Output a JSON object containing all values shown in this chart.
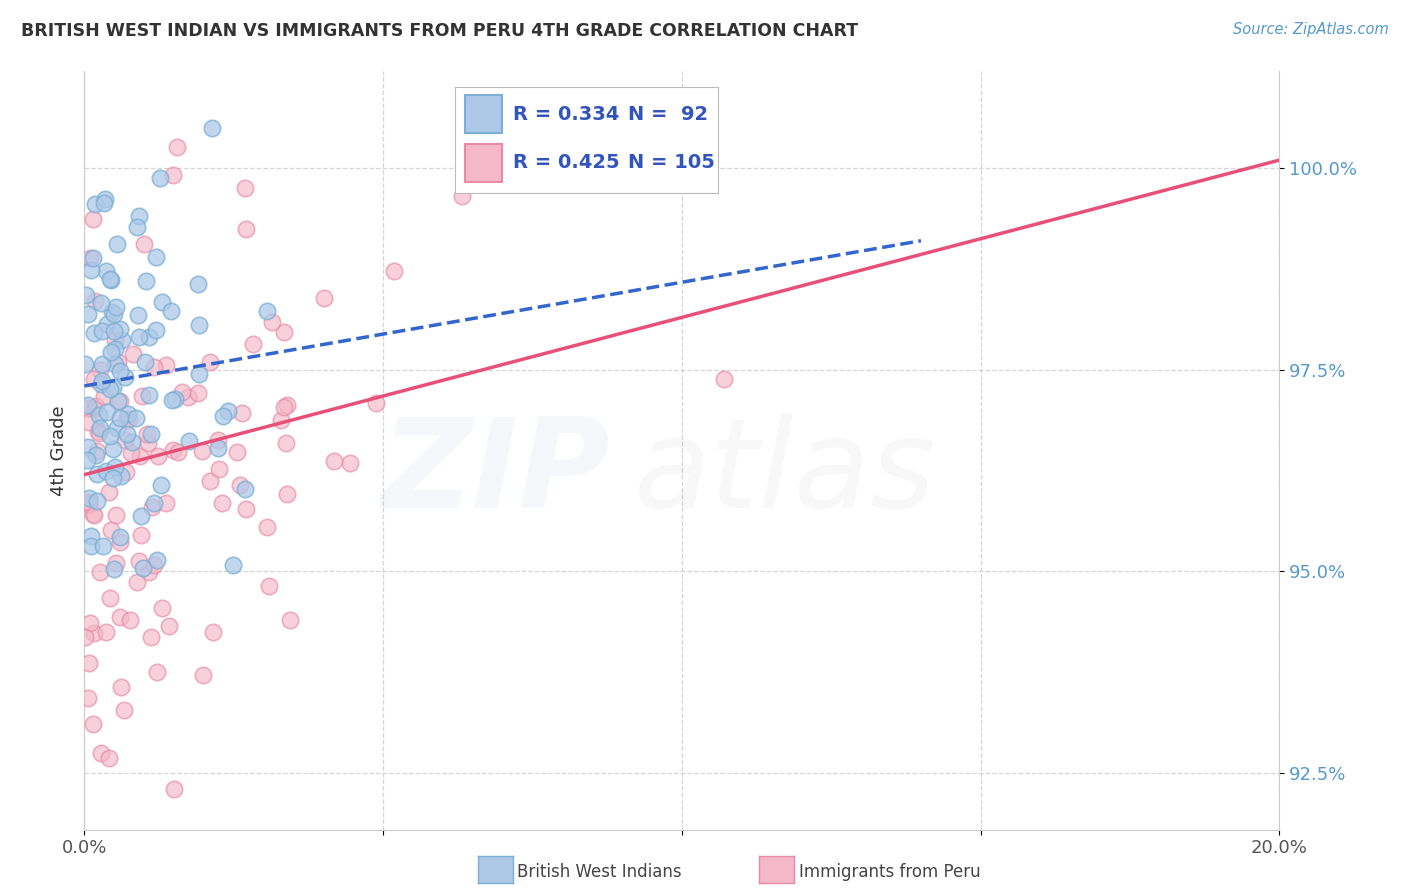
{
  "title": "BRITISH WEST INDIAN VS IMMIGRANTS FROM PERU 4TH GRADE CORRELATION CHART",
  "source": "Source: ZipAtlas.com",
  "ylabel": "4th Grade",
  "xlim": [
    0.0,
    20.0
  ],
  "ylim": [
    91.8,
    101.2
  ],
  "yticks": [
    92.5,
    95.0,
    97.5,
    100.0
  ],
  "xticks": [
    0.0,
    5.0,
    10.0,
    15.0,
    20.0
  ],
  "xtick_labels": [
    "0.0%",
    "",
    "",
    "",
    "20.0%"
  ],
  "ytick_labels": [
    "92.5%",
    "95.0%",
    "97.5%",
    "100.0%"
  ],
  "blue_fill": "#aec9e8",
  "blue_edge": "#7bafd4",
  "pink_fill": "#f4b8c8",
  "pink_edge": "#e88aa8",
  "blue_line_color": "#3366cc",
  "pink_line_color": "#e8507a",
  "r_blue": 0.334,
  "n_blue": 92,
  "r_pink": 0.425,
  "n_pink": 105,
  "legend_label_blue": "British West Indians",
  "legend_label_pink": "Immigrants from Peru",
  "blue_line_y0": 97.3,
  "blue_line_y1": 99.1,
  "blue_line_x0": 0.0,
  "blue_line_x1": 14.0,
  "pink_line_y0": 96.2,
  "pink_line_y1": 100.1,
  "pink_line_x0": 0.0,
  "pink_line_x1": 20.0,
  "watermark_zip": "ZIP",
  "watermark_atlas": "atlas",
  "background_color": "#ffffff",
  "grid_color": "#d5d5d5",
  "title_color": "#333333",
  "source_color": "#5599cc",
  "tick_color_y": "#5599cc",
  "tick_color_x": "#555555",
  "legend_text_color": "#3355bb"
}
